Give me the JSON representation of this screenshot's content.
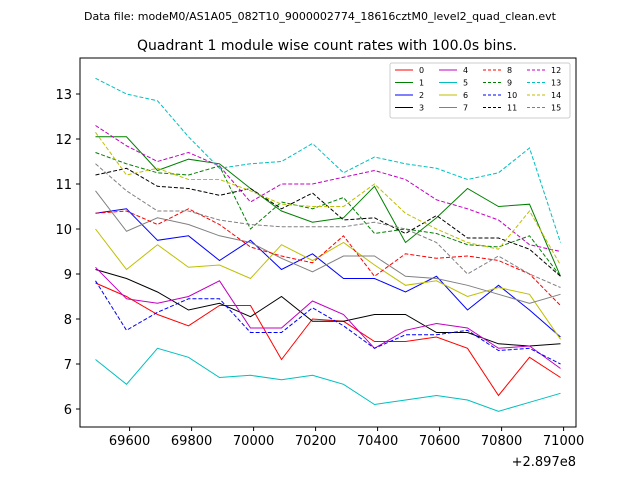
{
  "suptitle": "Data file: modeM0/AS1A05_082T10_9000002774_18616cztM0_level2_quad_clean.evt",
  "chart_data": {
    "type": "line",
    "title": "Quadrant 1 module wise count rates with 100.0s bins.",
    "xlabel": "",
    "ylabel": "",
    "offset_label": "+2.897e8",
    "xlim": [
      69440,
      71040
    ],
    "ylim": [
      5.6,
      13.8
    ],
    "xticks": [
      69600,
      69800,
      70000,
      70200,
      70400,
      70600,
      70800,
      71000
    ],
    "yticks": [
      6,
      7,
      8,
      9,
      10,
      11,
      12,
      13
    ],
    "x": [
      69490,
      69590,
      69690,
      69790,
      69890,
      69990,
      70090,
      70190,
      70290,
      70390,
      70490,
      70590,
      70690,
      70790,
      70890,
      70990
    ],
    "legend_position": "upper right",
    "series": [
      {
        "name": "0",
        "color": "#ff0000",
        "dash": "solid",
        "values": [
          8.8,
          8.5,
          8.1,
          7.85,
          8.3,
          8.3,
          7.1,
          8.0,
          7.95,
          7.5,
          7.5,
          7.6,
          7.35,
          6.3,
          7.15,
          6.7
        ]
      },
      {
        "name": "1",
        "color": "#008000",
        "dash": "solid",
        "values": [
          12.05,
          12.05,
          11.3,
          11.55,
          11.45,
          10.9,
          10.4,
          10.15,
          10.25,
          10.95,
          9.7,
          10.25,
          10.9,
          10.5,
          10.55,
          8.95
        ]
      },
      {
        "name": "2",
        "color": "#0000ff",
        "dash": "solid",
        "values": [
          10.35,
          10.45,
          9.75,
          9.85,
          9.3,
          9.75,
          9.1,
          9.45,
          8.9,
          8.9,
          8.6,
          8.95,
          8.2,
          8.75,
          8.2,
          7.6
        ]
      },
      {
        "name": "3",
        "color": "#000000",
        "dash": "solid",
        "values": [
          9.1,
          8.9,
          8.6,
          8.2,
          8.35,
          8.05,
          8.5,
          7.95,
          7.95,
          8.1,
          8.1,
          7.7,
          7.7,
          7.45,
          7.4,
          7.45
        ]
      },
      {
        "name": "4",
        "color": "#c000c0",
        "dash": "solid",
        "values": [
          9.15,
          8.45,
          8.35,
          8.5,
          8.85,
          7.8,
          7.8,
          8.4,
          8.1,
          7.35,
          7.75,
          7.9,
          7.8,
          7.35,
          7.4,
          6.9
        ]
      },
      {
        "name": "5",
        "color": "#00bfbf",
        "dash": "solid",
        "values": [
          7.1,
          6.55,
          7.35,
          7.15,
          6.7,
          6.75,
          6.65,
          6.75,
          6.55,
          6.1,
          6.2,
          6.3,
          6.2,
          5.95,
          6.15,
          6.35
        ]
      },
      {
        "name": "6",
        "color": "#bfbf00",
        "dash": "solid",
        "values": [
          10.0,
          9.1,
          9.65,
          9.15,
          9.2,
          8.9,
          9.65,
          9.3,
          9.7,
          9.2,
          8.75,
          8.85,
          8.5,
          8.7,
          8.55,
          7.55
        ]
      },
      {
        "name": "7",
        "color": "#808080",
        "dash": "solid",
        "values": [
          10.85,
          9.95,
          10.25,
          10.1,
          9.85,
          9.7,
          9.35,
          9.05,
          9.4,
          9.4,
          8.95,
          8.9,
          8.75,
          8.55,
          8.35,
          8.55
        ]
      },
      {
        "name": "8",
        "color": "#ff0000",
        "dash": "dashed",
        "values": [
          10.35,
          10.4,
          10.1,
          10.45,
          10.1,
          9.6,
          9.4,
          9.25,
          9.85,
          8.95,
          9.45,
          9.35,
          9.4,
          9.3,
          9.0,
          8.3
        ]
      },
      {
        "name": "9",
        "color": "#008000",
        "dash": "dashed",
        "values": [
          11.7,
          11.45,
          11.25,
          11.2,
          11.4,
          10.0,
          10.6,
          10.45,
          10.7,
          9.9,
          10.0,
          9.9,
          9.65,
          9.6,
          9.85,
          8.95
        ]
      },
      {
        "name": "10",
        "color": "#0000ff",
        "dash": "dashed",
        "values": [
          8.85,
          7.75,
          8.15,
          8.45,
          8.45,
          7.7,
          7.7,
          8.25,
          7.85,
          7.35,
          7.65,
          7.65,
          7.75,
          7.3,
          7.35,
          7.0
        ]
      },
      {
        "name": "11",
        "color": "#000000",
        "dash": "dashed",
        "values": [
          11.2,
          11.35,
          10.95,
          10.9,
          10.75,
          10.9,
          10.45,
          10.8,
          10.2,
          10.25,
          9.9,
          10.3,
          9.8,
          9.8,
          9.55,
          8.95
        ]
      },
      {
        "name": "12",
        "color": "#c000c0",
        "dash": "dashed",
        "values": [
          12.3,
          11.85,
          11.5,
          11.7,
          11.4,
          10.6,
          11.0,
          11.0,
          11.15,
          11.3,
          11.1,
          10.65,
          10.45,
          10.2,
          9.65,
          9.5
        ]
      },
      {
        "name": "13",
        "color": "#00bfbf",
        "dash": "dashed",
        "values": [
          13.35,
          13.0,
          12.85,
          12.05,
          11.35,
          11.45,
          11.5,
          11.9,
          11.25,
          11.6,
          11.45,
          11.35,
          11.1,
          11.25,
          11.8,
          9.7
        ]
      },
      {
        "name": "14",
        "color": "#bfbf00",
        "dash": "dashed",
        "values": [
          12.15,
          11.2,
          11.35,
          11.1,
          11.1,
          10.85,
          10.55,
          10.5,
          10.5,
          11.0,
          10.35,
          10.0,
          9.7,
          9.55,
          10.4,
          9.2
        ]
      },
      {
        "name": "15",
        "color": "#808080",
        "dash": "dashed",
        "values": [
          11.45,
          10.85,
          10.4,
          10.4,
          10.2,
          10.1,
          10.05,
          10.05,
          10.05,
          10.15,
          10.0,
          9.7,
          9.0,
          9.4,
          9.0,
          8.7
        ]
      }
    ]
  }
}
